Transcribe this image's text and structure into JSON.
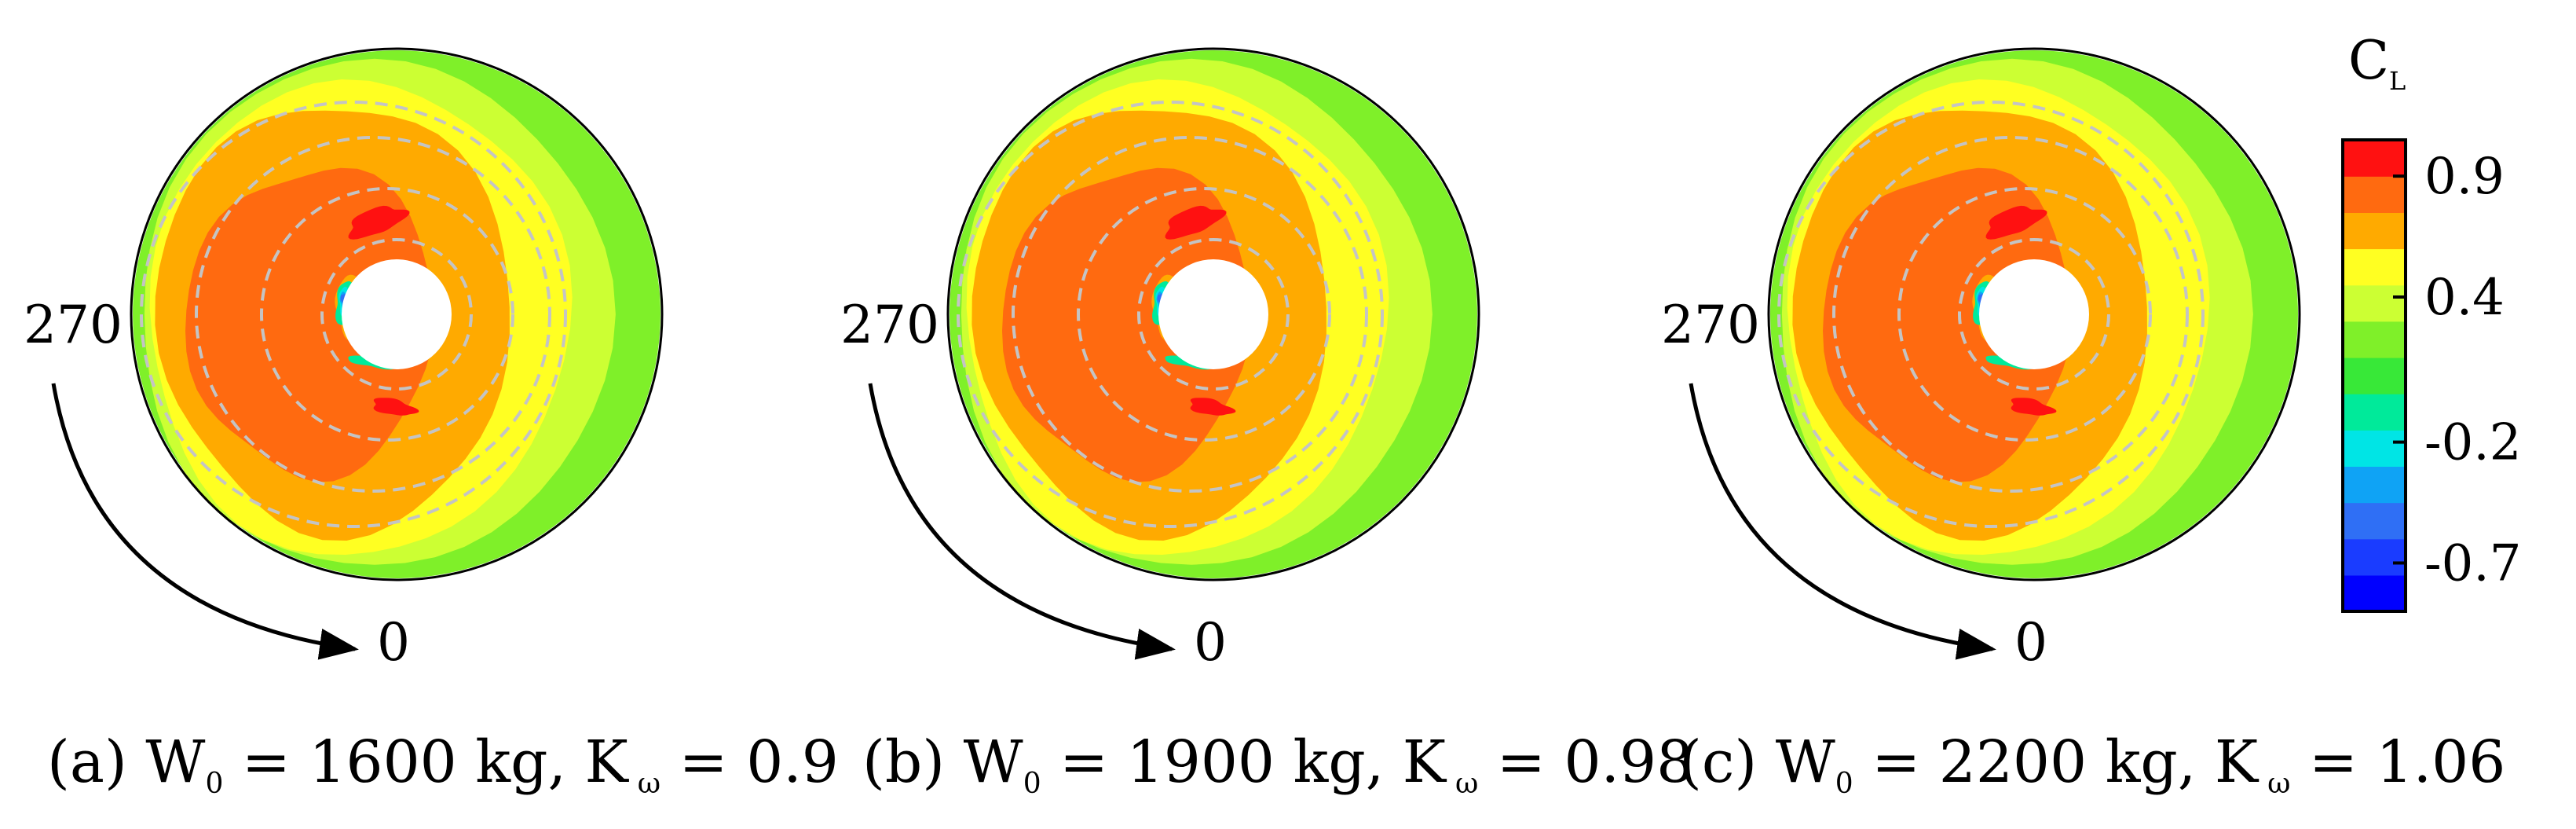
{
  "chart_data": {
    "type": "polar-contour",
    "colorbar": {
      "title": "C",
      "title_subscript": "L",
      "tick_labels": [
        "0.9",
        "0.4",
        "-0.2",
        "-0.7"
      ],
      "tick_values": [
        0.9,
        0.4,
        -0.2,
        -0.7
      ],
      "range": [
        -0.9,
        1.05
      ],
      "levels": [
        {
          "from": -0.9,
          "to": -0.75,
          "color": "#0000ff"
        },
        {
          "from": -0.75,
          "to": -0.6,
          "color": "#1a3cff"
        },
        {
          "from": -0.6,
          "to": -0.45,
          "color": "#2f6ff5"
        },
        {
          "from": -0.45,
          "to": -0.3,
          "color": "#0fa3f5"
        },
        {
          "from": -0.3,
          "to": -0.15,
          "color": "#00e5e5"
        },
        {
          "from": -0.15,
          "to": 0.0,
          "color": "#00ea9a"
        },
        {
          "from": 0.0,
          "to": 0.15,
          "color": "#38e838"
        },
        {
          "from": 0.15,
          "to": 0.3,
          "color": "#7ff029"
        },
        {
          "from": 0.3,
          "to": 0.45,
          "color": "#ccff33"
        },
        {
          "from": 0.45,
          "to": 0.6,
          "color": "#ffff22"
        },
        {
          "from": 0.6,
          "to": 0.75,
          "color": "#ffaa00"
        },
        {
          "from": 0.75,
          "to": 0.9,
          "color": "#ff6a10"
        },
        {
          "from": 0.9,
          "to": 1.05,
          "color": "#ff1111"
        }
      ]
    },
    "panels": [
      {
        "id": "a",
        "azimuth_left": "270",
        "azimuth_bottom": "0",
        "caption_prefix": "(a) W",
        "caption_sub": "0",
        "caption_mid": " = 1600 kg, K",
        "caption_sub2": "ω",
        "caption_suffix": " = 0.9",
        "W0_kg": 1600,
        "K_omega": 0.9
      },
      {
        "id": "b",
        "azimuth_left": "270",
        "azimuth_bottom": "0",
        "caption_prefix": "(b) W",
        "caption_sub": "0",
        "caption_mid": " = 1900 kg, K",
        "caption_sub2": "ω",
        "caption_suffix": " = 0.98",
        "W0_kg": 1900,
        "K_omega": 0.98
      },
      {
        "id": "c",
        "azimuth_left": "270",
        "azimuth_bottom": "0",
        "caption_prefix": "(c) W",
        "caption_sub": "0",
        "caption_mid": " = 2200 kg, K",
        "caption_sub2": "ω",
        "caption_suffix": " = 1.06",
        "W0_kg": 2200,
        "K_omega": 1.06
      }
    ]
  }
}
